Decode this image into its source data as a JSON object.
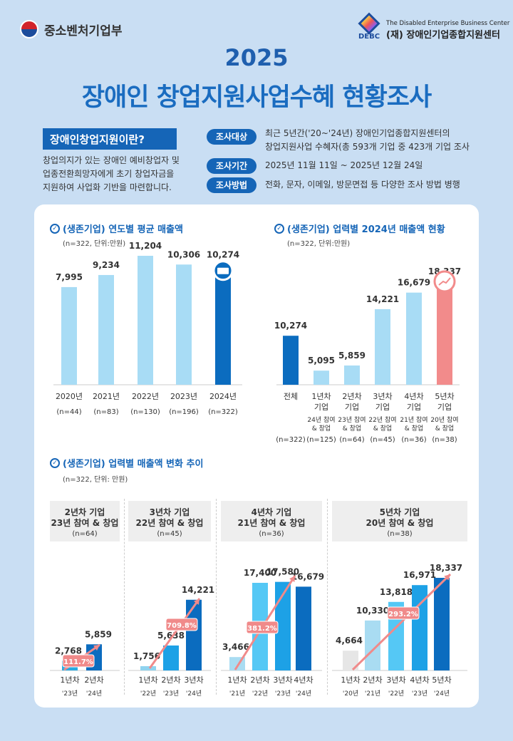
{
  "header": {
    "ministry": "중소벤처기업부",
    "center_en": "The Disabled Enterprise Business Center",
    "center_ko": "(재) 장애인기업종합지원센터",
    "center_abbr": "DEBC",
    "year": "2025",
    "title": "장애인 창업지원사업수혜 현황조사"
  },
  "intro": {
    "label": "장애인창업지원이란?",
    "lines": [
      "창업의지가 있는 장애인 예비창업자 및",
      "업종전환희망자에게 초기 창업자금을",
      "지원하여 사업화 기반을 마련합니다."
    ]
  },
  "survey": [
    {
      "label": "조사대상",
      "lines": [
        "최근 5년간('20~'24년) 장애인기업종합지원센터의",
        "창업지원사업 수혜자(총 593개 기업 중 423개 기업 조사"
      ]
    },
    {
      "label": "조사기간",
      "lines": [
        "2025년 11월 11일 ~ 2025년 12월 24일"
      ]
    },
    {
      "label": "조사방법",
      "lines": [
        "전화, 문자, 이메일, 방문면접 등 다양한 조사 방법 병행"
      ]
    }
  ],
  "chart_data": [
    {
      "type": "bar",
      "title": "(생존기업) 연도별 평균 매출액",
      "subtitle": "(n=322, 단위:만원)",
      "categories": [
        "2020년",
        "2021년",
        "2022년",
        "2023년",
        "2024년"
      ],
      "n": [
        "(n=44)",
        "(n=83)",
        "(n=130)",
        "(n=196)",
        "(n=322)"
      ],
      "values": [
        7995,
        9234,
        11204,
        10306,
        10274
      ],
      "value_labels": [
        "7,995",
        "9,234",
        "11,204",
        "10,306",
        "10,274"
      ],
      "colors": [
        "#a8dcf5",
        "#a8dcf5",
        "#a8dcf5",
        "#a8dcf5",
        "#0b6cbf"
      ],
      "highlight_icon": "money-icon"
    },
    {
      "type": "bar",
      "title": "(생존기업) 업력별 2024년 매출액 현황",
      "subtitle": "(n=322, 단위:만원)",
      "categories": [
        [
          "전체"
        ],
        [
          "1년차",
          "기업"
        ],
        [
          "2년차",
          "기업"
        ],
        [
          "3년차",
          "기업"
        ],
        [
          "4년차",
          "기업"
        ],
        [
          "5년차",
          "기업"
        ]
      ],
      "notes": [
        [],
        [
          "24년 참여",
          "& 창업"
        ],
        [
          "23년 참여",
          "& 창업"
        ],
        [
          "22년 참여",
          "& 창업"
        ],
        [
          "21년 참여",
          "& 창업"
        ],
        [
          "20년 참여",
          "& 창업"
        ]
      ],
      "n": [
        "(n=322)",
        "(n=125)",
        "(n=64)",
        "(n=45)",
        "(n=36)",
        "(n=38)"
      ],
      "values": [
        10274,
        5095,
        5859,
        14221,
        16679,
        18337
      ],
      "value_labels": [
        "10,274",
        "5,095",
        "5,859",
        "14,221",
        "16,679",
        "18,337"
      ],
      "colors": [
        "#0b6cbf",
        "#a8dcf5",
        "#a8dcf5",
        "#a8dcf5",
        "#a8dcf5",
        "#f28b8b"
      ],
      "highlight_icon": "growth-chart-icon"
    },
    {
      "type": "bar",
      "title": "(생존기업) 업력별 매출액 변화 추이",
      "subtitle": "(n=322, 단위: 만원)",
      "panels": [
        {
          "header": [
            "2년차 기업",
            "23년 참여 & 창업"
          ],
          "n": "(n=64)",
          "categories": [
            "1년차",
            "2년차"
          ],
          "years": [
            "'23년",
            "'24년"
          ],
          "values": [
            2768,
            5859
          ],
          "value_labels": [
            "2,768",
            "5,859"
          ],
          "growth": "111.7%",
          "colors": [
            "#29abe2",
            "#0b6cbf"
          ]
        },
        {
          "header": [
            "3년차 기업",
            "22년 참여 & 창업"
          ],
          "n": "(n=45)",
          "categories": [
            "1년차",
            "2년차",
            "3년차"
          ],
          "years": [
            "'22년",
            "'23년",
            "'24년"
          ],
          "values": [
            1756,
            5638,
            14221
          ],
          "value_labels": [
            "1,756",
            "5,638",
            "14,221"
          ],
          "growth": "709.8%",
          "colors": [
            "#8fd3ef",
            "#1da1e6",
            "#0b6cbf"
          ]
        },
        {
          "header": [
            "4년차 기업",
            "21년 참여 & 창업"
          ],
          "n": "(n=36)",
          "categories": [
            "1년차",
            "2년차",
            "3년차",
            "4년차"
          ],
          "years": [
            "'21년",
            "'22년",
            "'23년",
            "'24년"
          ],
          "values": [
            3466,
            17400,
            17580,
            16679
          ],
          "value_labels": [
            "3,466",
            "17,400",
            "17,580",
            "16,679"
          ],
          "growth": "381.2%",
          "colors": [
            "#a9dcf2",
            "#55c8f5",
            "#1da1e6",
            "#0b6cbf"
          ]
        },
        {
          "header": [
            "5년차 기업",
            "20년 참여 & 창업"
          ],
          "n": "(n=38)",
          "categories": [
            "1년차",
            "2년차",
            "3년차",
            "4년차",
            "5년차"
          ],
          "years": [
            "'20년",
            "'21년",
            "'22년",
            "'23년",
            "'24년"
          ],
          "values": [
            4664,
            10330,
            13818,
            16971,
            18337
          ],
          "value_labels": [
            "4,664",
            "10,330",
            "13,818",
            "16,971",
            "18,337"
          ],
          "growth": "293.2%",
          "colors": [
            "#e6e6e6",
            "#a9dcf2",
            "#55c8f5",
            "#1da1e6",
            "#0b6cbf"
          ]
        }
      ],
      "growth_color": "#f08a8a"
    }
  ]
}
